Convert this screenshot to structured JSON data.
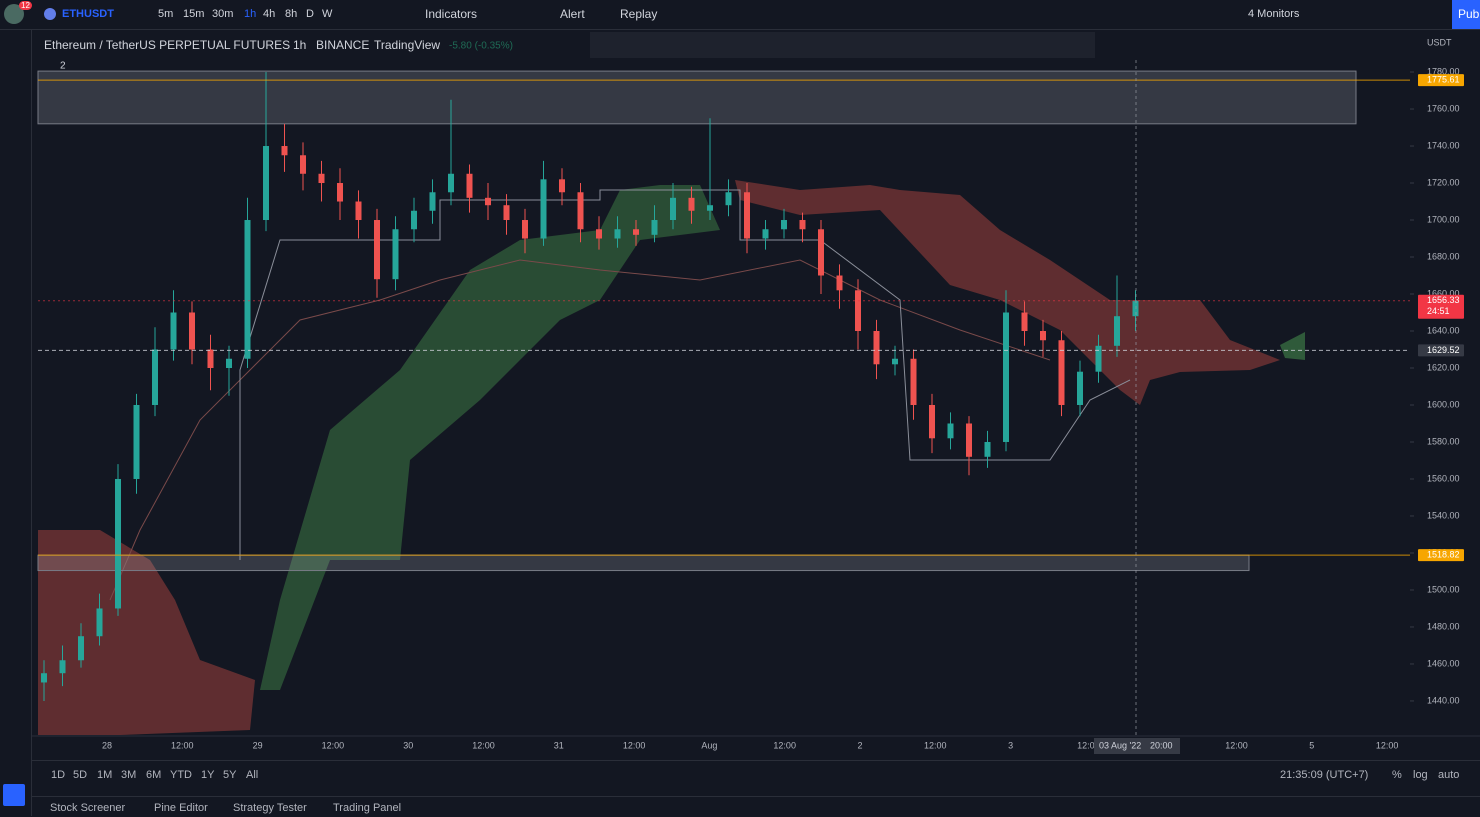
{
  "topbar": {
    "badge": "12",
    "symbol": "ETHUSDT",
    "intervals": [
      "5m",
      "15m",
      "30m",
      "1h",
      "4h",
      "8h",
      "D",
      "W"
    ],
    "indicators": "Indicators",
    "alert": "Alert",
    "replay": "Replay",
    "monitors": "4 Monitors",
    "publish": "Pub"
  },
  "legend": {
    "name": "Ethereum / TetherUS PERPETUAL FUTURES",
    "interval": "1h",
    "exchange": "BINANCE",
    "source": "TradingView",
    "change": "-5.80 (-0.35%)",
    "collapsed": "2"
  },
  "chart": {
    "currency": "USDT",
    "ylim": [
      1421.6,
      1786.5
    ],
    "up_color": "#26a69a",
    "down_color": "#ef5350",
    "yticks": [
      {
        "value": 1780,
        "label": "1780.00"
      },
      {
        "value": 1760,
        "label": "1760.00"
      },
      {
        "value": 1740,
        "label": "1740.00"
      },
      {
        "value": 1720,
        "label": "1720.00"
      },
      {
        "value": 1700,
        "label": "1700.00"
      },
      {
        "value": 1680,
        "label": "1680.00"
      },
      {
        "value": 1660,
        "label": "1660.00"
      },
      {
        "value": 1640,
        "label": "1640.00"
      },
      {
        "value": 1620,
        "label": "1620.00"
      },
      {
        "value": 1600,
        "label": "1600.00"
      },
      {
        "value": 1580,
        "label": "1580.00"
      },
      {
        "value": 1560,
        "label": "1560.00"
      },
      {
        "value": 1540,
        "label": "1540.00"
      },
      {
        "value": 1520,
        "label": "1520.00"
      },
      {
        "value": 1500,
        "label": "1500.00"
      },
      {
        "value": 1480,
        "label": "1480.00"
      },
      {
        "value": 1460,
        "label": "1460.00"
      },
      {
        "value": 1440,
        "label": "1440.00"
      }
    ],
    "price_tags": [
      {
        "value": 1775.61,
        "label": "1775.61",
        "color": "#f7a600"
      },
      {
        "value": 1656.33,
        "label": "1656.33",
        "countdown": "24:51",
        "color": "#f23645"
      },
      {
        "value": 1629.52,
        "label": "1629.52",
        "color": "#363a45"
      },
      {
        "value": 1518.82,
        "label": "1518.82",
        "color": "#f7a600"
      }
    ],
    "zones": [
      [
        1780.5,
        1752
      ],
      [
        1518.82,
        1510.5
      ]
    ],
    "time_labels": [
      "28",
      "12:00",
      "29",
      "12:00",
      "30",
      "12:00",
      "31",
      "12:00",
      "Aug",
      "12:00",
      "2",
      "12:00",
      "3",
      "12:0",
      "12:00",
      "5",
      "12:00"
    ],
    "crosshair": {
      "date": "03 Aug '22",
      "time": "20:00"
    },
    "candles": [
      [
        1450,
        1462,
        1440,
        1455
      ],
      [
        1455,
        1470,
        1448,
        1462
      ],
      [
        1462,
        1482,
        1458,
        1475
      ],
      [
        1475,
        1498,
        1470,
        1490
      ],
      [
        1490,
        1568,
        1486,
        1560
      ],
      [
        1560,
        1606,
        1552,
        1600
      ],
      [
        1600,
        1642,
        1594,
        1630
      ],
      [
        1630,
        1662,
        1624,
        1650
      ],
      [
        1650,
        1656,
        1622,
        1630
      ],
      [
        1630,
        1638,
        1608,
        1620
      ],
      [
        1620,
        1632,
        1605,
        1625
      ],
      [
        1625,
        1712,
        1620,
        1700
      ],
      [
        1700,
        1780,
        1694,
        1740
      ],
      [
        1740,
        1752,
        1726,
        1735
      ],
      [
        1735,
        1742,
        1716,
        1725
      ],
      [
        1725,
        1732,
        1710,
        1720
      ],
      [
        1720,
        1728,
        1700,
        1710
      ],
      [
        1710,
        1716,
        1690,
        1700
      ],
      [
        1700,
        1706,
        1658,
        1668
      ],
      [
        1668,
        1702,
        1662,
        1695
      ],
      [
        1695,
        1712,
        1688,
        1705
      ],
      [
        1705,
        1722,
        1698,
        1715
      ],
      [
        1715,
        1765,
        1708,
        1725
      ],
      [
        1725,
        1730,
        1704,
        1712
      ],
      [
        1712,
        1720,
        1700,
        1708
      ],
      [
        1708,
        1714,
        1692,
        1700
      ],
      [
        1700,
        1706,
        1682,
        1690
      ],
      [
        1690,
        1732,
        1686,
        1722
      ],
      [
        1722,
        1728,
        1708,
        1715
      ],
      [
        1715,
        1720,
        1688,
        1695
      ],
      [
        1695,
        1702,
        1684,
        1690
      ],
      [
        1690,
        1702,
        1685,
        1695
      ],
      [
        1695,
        1700,
        1686,
        1692
      ],
      [
        1692,
        1708,
        1688,
        1700
      ],
      [
        1700,
        1720,
        1695,
        1712
      ],
      [
        1712,
        1718,
        1698,
        1705
      ],
      [
        1705,
        1755,
        1700,
        1708
      ],
      [
        1708,
        1722,
        1702,
        1715
      ],
      [
        1715,
        1720,
        1682,
        1690
      ],
      [
        1690,
        1700,
        1684,
        1695
      ],
      [
        1695,
        1706,
        1690,
        1700
      ],
      [
        1700,
        1704,
        1688,
        1695
      ],
      [
        1695,
        1700,
        1660,
        1670
      ],
      [
        1670,
        1676,
        1652,
        1662
      ],
      [
        1662,
        1668,
        1630,
        1640
      ],
      [
        1640,
        1646,
        1614,
        1622
      ],
      [
        1622,
        1632,
        1616,
        1625
      ],
      [
        1625,
        1630,
        1592,
        1600
      ],
      [
        1600,
        1606,
        1574,
        1582
      ],
      [
        1582,
        1596,
        1576,
        1590
      ],
      [
        1590,
        1594,
        1562,
        1572
      ],
      [
        1572,
        1586,
        1566,
        1580
      ],
      [
        1580,
        1662,
        1575,
        1650
      ],
      [
        1650,
        1656,
        1632,
        1640
      ],
      [
        1640,
        1646,
        1626,
        1635
      ],
      [
        1635,
        1640,
        1594,
        1600
      ],
      [
        1600,
        1624,
        1594,
        1618
      ],
      [
        1618,
        1638,
        1612,
        1632
      ],
      [
        1632,
        1670,
        1626,
        1648
      ],
      [
        1648,
        1662,
        1640,
        1656.33
      ]
    ]
  },
  "bottombar": {
    "ranges": [
      "1D",
      "5D",
      "1M",
      "3M",
      "6M",
      "YTD",
      "1Y",
      "5Y",
      "All"
    ],
    "clock": "21:35:09 (UTC+7)",
    "percent": "%",
    "log": "log",
    "auto": "auto"
  },
  "tabs": [
    "Stock Screener",
    "Pine Editor",
    "Strategy Tester",
    "Trading Panel"
  ]
}
